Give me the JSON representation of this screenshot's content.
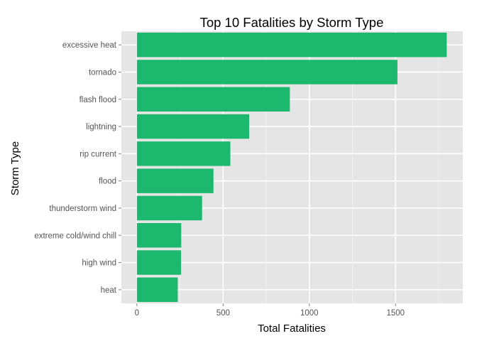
{
  "chart_data": {
    "type": "bar",
    "orientation": "horizontal",
    "title": "Top 10 Fatalities by Storm Type",
    "xlabel": "Total Fatalities",
    "ylabel": "Storm Type",
    "categories": [
      "excessive heat",
      "tornado",
      "flash flood",
      "lightning",
      "rip current",
      "flood",
      "thunderstorm wind",
      "extreme cold/wind chill",
      "high wind",
      "heat"
    ],
    "values": [
      1797,
      1511,
      887,
      651,
      542,
      444,
      378,
      257,
      256,
      237
    ],
    "xlim": [
      -90,
      1890
    ],
    "xticks": [
      0,
      500,
      1000,
      1500
    ],
    "xtick_labels": [
      "0",
      "500",
      "1000",
      "1500"
    ],
    "grid": true,
    "colors": {
      "bar": "#1cb86d",
      "panel": "#e5e5e5",
      "grid_major": "#ffffff",
      "grid_minor": "#f2f2f2"
    }
  }
}
